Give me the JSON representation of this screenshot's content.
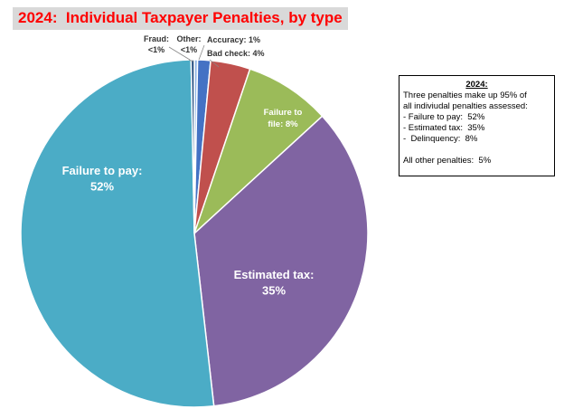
{
  "title": "2024:  Individual Taxpayer Penalties, by type",
  "note": {
    "heading": "2024:",
    "lines": [
      "Three penalties make up 95% of",
      "all indiviudal penalties assessed:",
      "- Failure to pay:  52%",
      "- Estimated tax:  35%",
      "-  Delinquency:  8%"
    ],
    "footer": "All other penalties:  5%"
  },
  "chart_data": {
    "type": "pie",
    "title": "2024:  Individual Taxpayer Penalties, by type",
    "slices": [
      {
        "name": "Other",
        "value": 0.3,
        "color": "#8eb4e3",
        "label": [
          "Other:",
          "<1%"
        ]
      },
      {
        "name": "Accuracy",
        "value": 1.2,
        "color": "#4472c4",
        "label": [
          "Accuracy: 1%"
        ]
      },
      {
        "name": "Bad check",
        "value": 3.7,
        "color": "#c0504d",
        "label": [
          "Bad check: 4%"
        ]
      },
      {
        "name": "Failure to file",
        "value": 8,
        "color": "#9bbb59",
        "label": [
          "Failure to",
          "file:  8%"
        ]
      },
      {
        "name": "Estimated tax",
        "value": 35,
        "color": "#8064a2",
        "label": [
          "Estimated tax:",
          "35%"
        ]
      },
      {
        "name": "Failure to pay",
        "value": 51.5,
        "color": "#4bacc6",
        "label": [
          "Failure to pay:",
          "52%"
        ]
      },
      {
        "name": "Fraud",
        "value": 0.3,
        "color": "#1f497d",
        "label": [
          "Fraud:",
          "<1%"
        ]
      }
    ]
  }
}
